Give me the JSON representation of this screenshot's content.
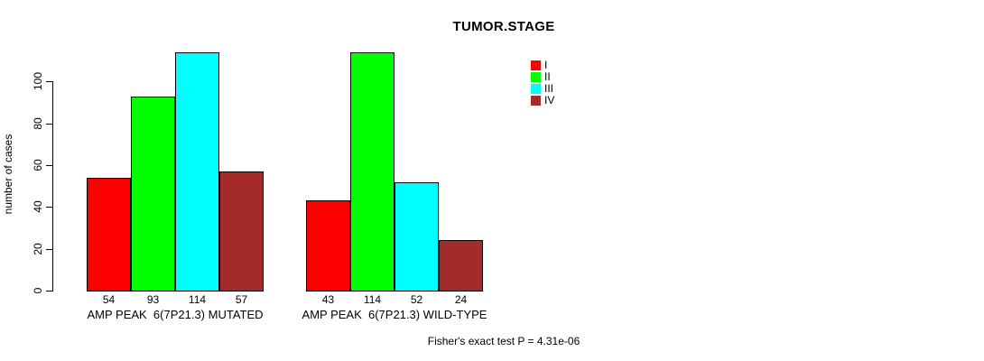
{
  "title": "TUMOR.STAGE",
  "footer": "Fisher's exact test P = 4.31e-06",
  "colors": {
    "stage_I": "#FF0000",
    "stage_II": "#00FF00",
    "stage_III": "#00FFFF",
    "stage_IV": "#A52A2A",
    "axis": "#000000",
    "background": "#FFFFFF"
  },
  "chart_data": {
    "type": "bar",
    "title": "TUMOR.STAGE",
    "xlabel": "",
    "ylabel": "number of cases",
    "ylim": [
      0,
      114
    ],
    "yticks": [
      0,
      20,
      40,
      60,
      80,
      100
    ],
    "grid": false,
    "legend_position": "top-right",
    "categories": [
      "AMP PEAK  6(7P21.3) MUTATED",
      "AMP PEAK  6(7P21.3) WILD-TYPE"
    ],
    "series": [
      {
        "name": "I",
        "color": "#FF0000",
        "values": [
          54,
          43
        ]
      },
      {
        "name": "II",
        "color": "#00FF00",
        "values": [
          93,
          114
        ]
      },
      {
        "name": "III",
        "color": "#00FFFF",
        "values": [
          114,
          52
        ]
      },
      {
        "name": "IV",
        "color": "#A52A2A",
        "values": [
          57,
          24
        ]
      }
    ],
    "bar_value_labels": [
      [
        54,
        93,
        114,
        57
      ],
      [
        43,
        114,
        52,
        24
      ]
    ],
    "annotation": "Fisher's exact test P = 4.31e-06"
  }
}
